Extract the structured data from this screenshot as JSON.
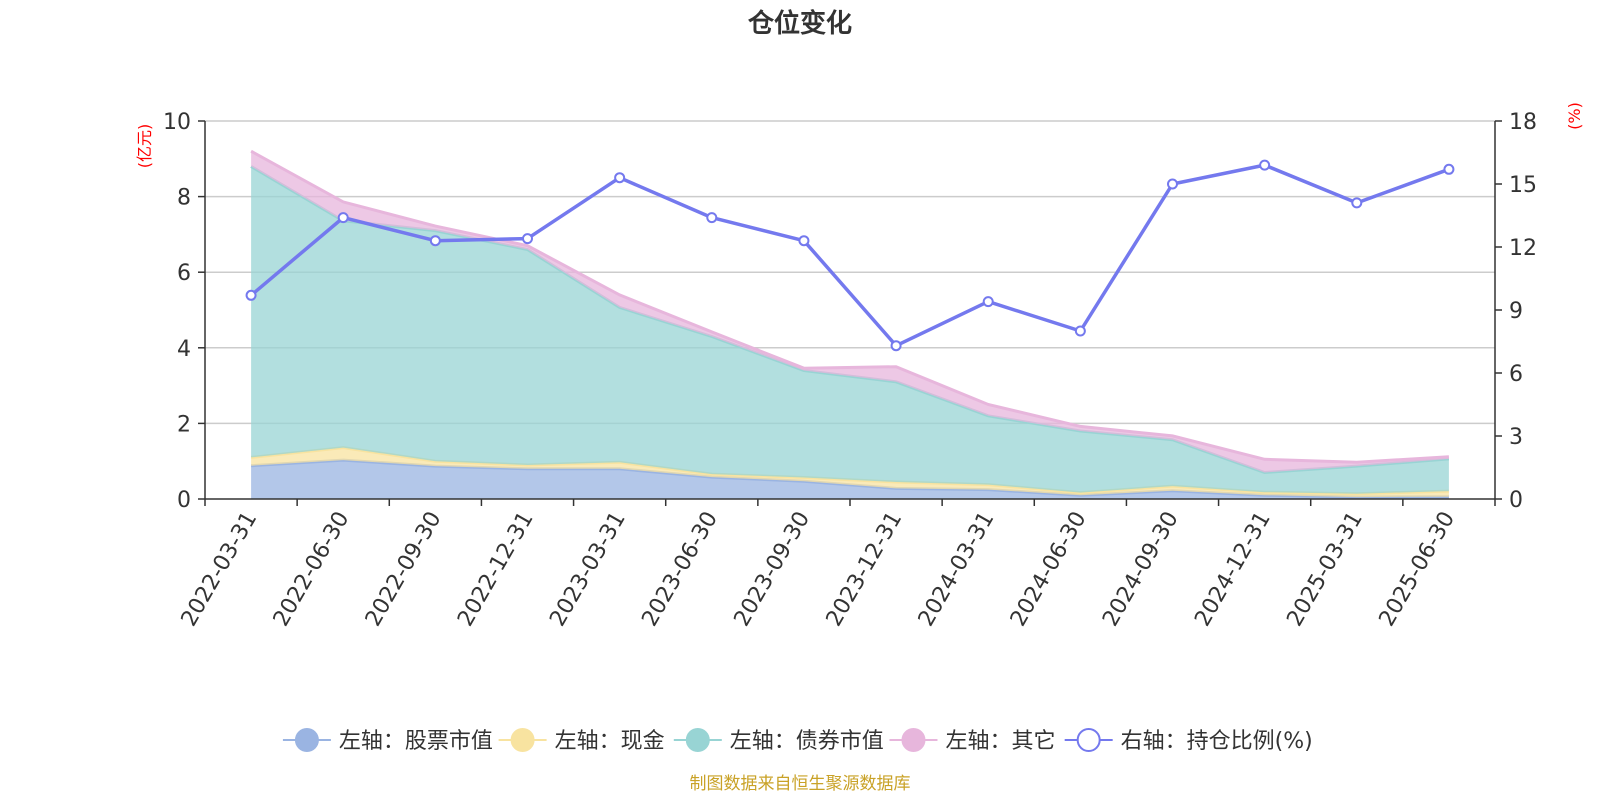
{
  "chart_data": {
    "type": "area",
    "title": "仓位变化",
    "left_unit": "(亿元)",
    "right_unit": "(%)",
    "categories": [
      "2022-03-31",
      "2022-06-30",
      "2022-09-30",
      "2022-12-31",
      "2023-03-31",
      "2023-06-30",
      "2023-09-30",
      "2023-12-31",
      "2024-03-31",
      "2024-06-30",
      "2024-09-30",
      "2024-12-31",
      "2025-03-31",
      "2025-06-30"
    ],
    "left_axis": {
      "min": 0,
      "max": 10,
      "ticks": [
        0,
        2,
        4,
        6,
        8,
        10
      ]
    },
    "right_axis": {
      "min": 0,
      "max": 18,
      "ticks": [
        0,
        3,
        6,
        9,
        12,
        15,
        18
      ]
    },
    "stacked_series": [
      {
        "name": "左轴：股票市值",
        "color": "#9ab4e2",
        "values": [
          0.88,
          1.03,
          0.87,
          0.8,
          0.8,
          0.58,
          0.47,
          0.28,
          0.25,
          0.1,
          0.22,
          0.1,
          0.05,
          0.06
        ]
      },
      {
        "name": "左轴：现金",
        "color": "#f8e3a0",
        "values": [
          0.22,
          0.33,
          0.13,
          0.1,
          0.17,
          0.08,
          0.1,
          0.17,
          0.13,
          0.07,
          0.12,
          0.08,
          0.09,
          0.15
        ]
      },
      {
        "name": "左轴：债券市值",
        "color": "#98d4d4",
        "values": [
          7.7,
          6.0,
          6.1,
          5.7,
          4.1,
          3.64,
          2.83,
          2.65,
          1.82,
          1.63,
          1.23,
          0.52,
          0.73,
          0.85
        ]
      },
      {
        "name": "左轴：其它",
        "color": "#e7b6dc",
        "values": [
          0.4,
          0.5,
          0.12,
          0.1,
          0.33,
          0.12,
          0.06,
          0.4,
          0.3,
          0.12,
          0.1,
          0.35,
          0.1,
          0.06
        ]
      }
    ],
    "line_series": {
      "name": "右轴：持仓比例(%)",
      "color": "#7479ee",
      "values": [
        9.7,
        13.4,
        12.3,
        12.4,
        15.3,
        13.4,
        12.3,
        7.3,
        9.4,
        8.0,
        15.0,
        15.9,
        14.1,
        15.7
      ]
    },
    "grid": true,
    "legend_position": "bottom"
  },
  "source_note": "制图数据来自恒生聚源数据库"
}
